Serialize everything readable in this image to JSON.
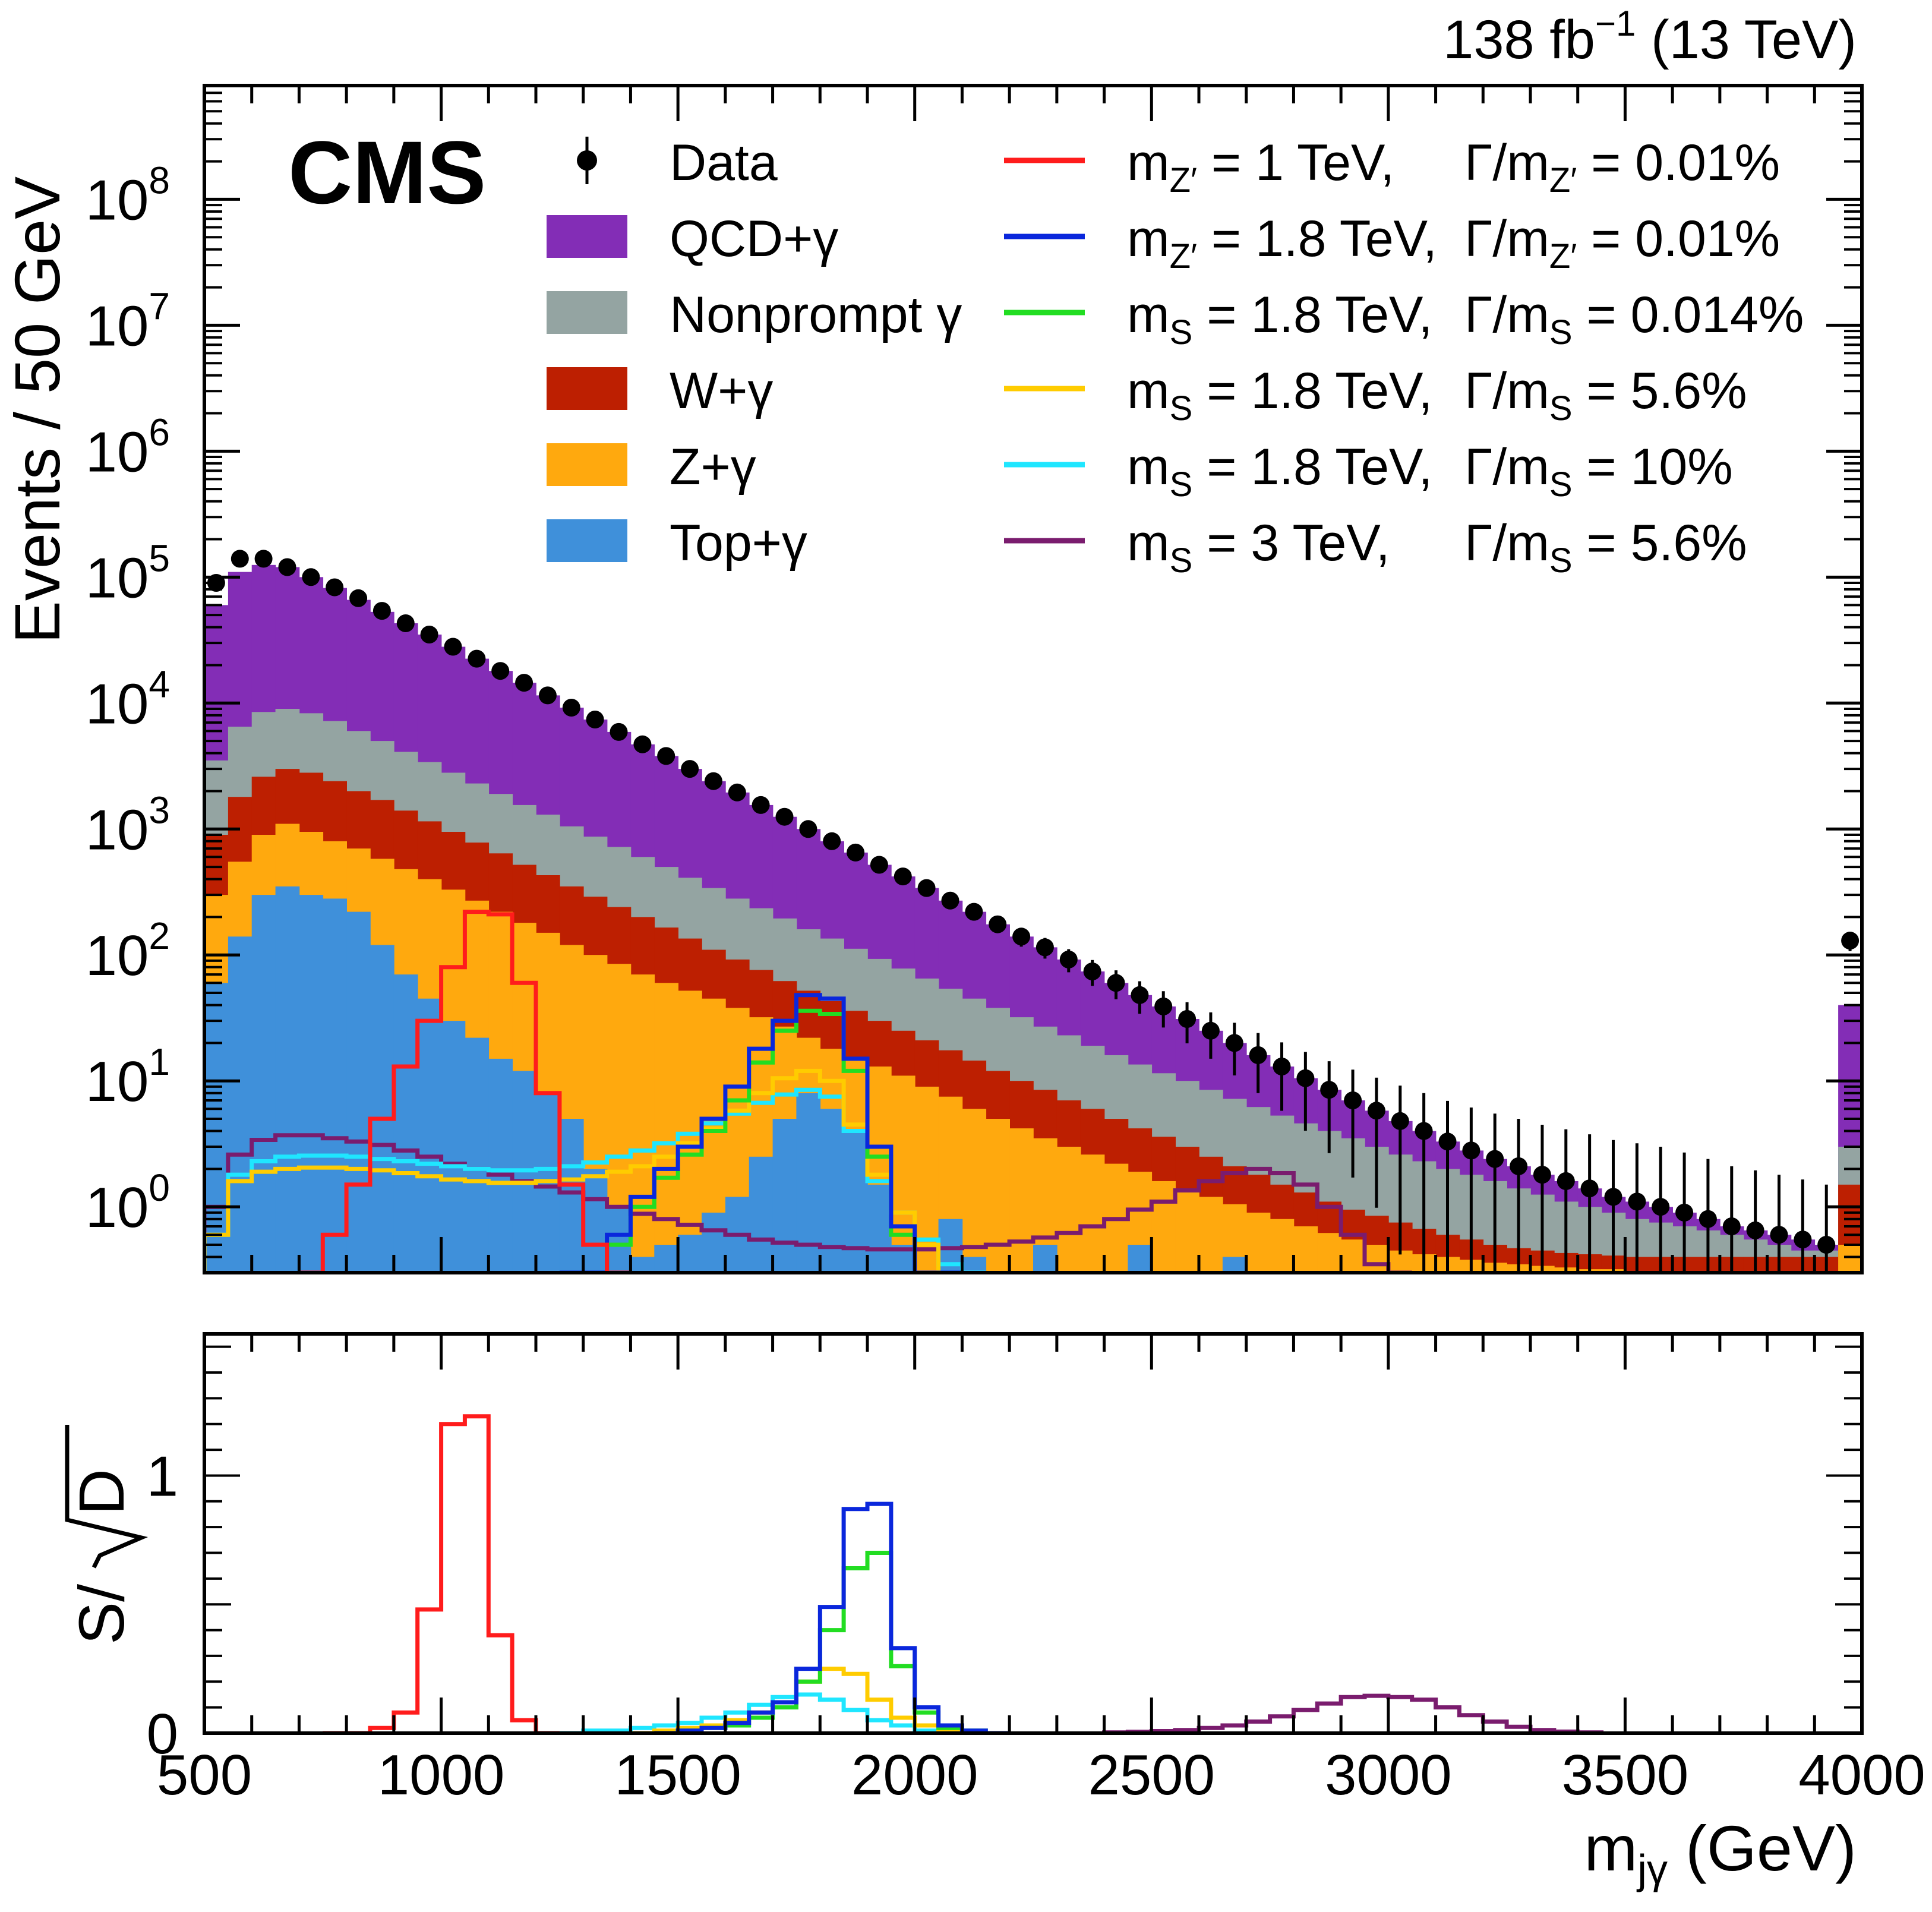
{
  "chart_data": {
    "type": "histogram-stack",
    "header": {
      "lumi_value": "138",
      "lumi_unit_prefix": "fb",
      "lumi_unit_exp": "−1",
      "energy": "(13 TeV)",
      "experiment": "CMS"
    },
    "colors": {
      "qcd": "#832db6",
      "nonprompt": "#94a4a2",
      "wgamma": "#bd1f01",
      "zgamma": "#ffa90e",
      "topgamma": "#3f90da",
      "sig_zp1": "#ff1c1c",
      "sig_zp18": "#0a27dc",
      "sig_s18_narrow": "#22dd22",
      "sig_s18_56": "#ffcc00",
      "sig_s18_10": "#1fe6ff",
      "sig_s3": "#7a1c6e",
      "data": "#000000"
    },
    "x_axis": {
      "label_main": "m",
      "label_sub": "jγ",
      "label_unit": " (GeV)",
      "range": [
        500,
        4000
      ],
      "ticks": [
        500,
        1000,
        1500,
        2000,
        2500,
        3000,
        3500,
        4000
      ],
      "tick_labels": [
        "500",
        "1000",
        "1500",
        "2000",
        "2500",
        "3000",
        "3500",
        "4000"
      ],
      "bin_width": 50
    },
    "top_panel": {
      "ylabel": "Events / 50 GeV",
      "yscale": "log",
      "ylim": [
        0.3,
        800000000.0
      ],
      "ticks": [
        {
          "base": "10",
          "exp": "0",
          "value": 1
        },
        {
          "base": "10",
          "exp": "1",
          "value": 10
        },
        {
          "base": "10",
          "exp": "2",
          "value": 100
        },
        {
          "base": "10",
          "exp": "3",
          "value": 1000
        },
        {
          "base": "10",
          "exp": "4",
          "value": 10000
        },
        {
          "base": "10",
          "exp": "5",
          "value": 100000
        },
        {
          "base": "10",
          "exp": "6",
          "value": 1000000
        },
        {
          "base": "10",
          "exp": "7",
          "value": 10000000
        },
        {
          "base": "10",
          "exp": "8",
          "value": 100000000
        }
      ]
    },
    "bottom_panel": {
      "ylabel_prefix": "S/",
      "ylabel_root": "D",
      "ylim": [
        0,
        1.55
      ],
      "ticks": [
        0,
        1
      ],
      "tick_labels": [
        "0",
        "1"
      ]
    },
    "legend": {
      "left": [
        {
          "key": "data",
          "label": "Data",
          "style": "marker"
        },
        {
          "key": "qcd",
          "label": "QCD+γ",
          "style": "box"
        },
        {
          "key": "nonprompt",
          "label": "Nonprompt γ",
          "style": "box"
        },
        {
          "key": "wgamma",
          "label": "W+γ",
          "style": "box"
        },
        {
          "key": "zgamma",
          "label": "Z+γ",
          "style": "box"
        },
        {
          "key": "topgamma",
          "label": "Top+γ",
          "style": "box"
        }
      ],
      "right": [
        {
          "key": "sig_zp1",
          "mass_sym": "m",
          "mass_sub": "Z′",
          "mass_val": " = 1 TeV,",
          "width_sym": "Γ/m",
          "width_sub": "Z′",
          "width_val": " = 0.01%"
        },
        {
          "key": "sig_zp18",
          "mass_sym": "m",
          "mass_sub": "Z′",
          "mass_val": " = 1.8 TeV,",
          "width_sym": "Γ/m",
          "width_sub": "Z′",
          "width_val": " = 0.01%"
        },
        {
          "key": "sig_s18_narrow",
          "mass_sym": "m",
          "mass_sub": "S",
          "mass_val": " = 1.8 TeV,",
          "width_sym": "Γ/m",
          "width_sub": "S",
          "width_val": " = 0.014%"
        },
        {
          "key": "sig_s18_56",
          "mass_sym": "m",
          "mass_sub": "S",
          "mass_val": " = 1.8 TeV,",
          "width_sym": "Γ/m",
          "width_sub": "S",
          "width_val": " = 5.6%"
        },
        {
          "key": "sig_s18_10",
          "mass_sym": "m",
          "mass_sub": "S",
          "mass_val": " = 1.8 TeV,",
          "width_sym": "Γ/m",
          "width_sub": "S",
          "width_val": " = 10%"
        },
        {
          "key": "sig_s3",
          "mass_sym": "m",
          "mass_sub": "S",
          "mass_val": " = 3 TeV,",
          "width_sym": "Γ/m",
          "width_sub": "S",
          "width_val": " = 5.6%"
        }
      ]
    },
    "background_stack": {
      "order": [
        "topgamma",
        "zgamma",
        "wgamma",
        "nonprompt",
        "qcd"
      ],
      "cumulative": {
        "topgamma": [
          60,
          140,
          300,
          350,
          300,
          280,
          220,
          120,
          70,
          45,
          30,
          22,
          15,
          12,
          8,
          5,
          2,
          1,
          0.4,
          0.5,
          0.6,
          0.9,
          1.2,
          2.5,
          5,
          8,
          6,
          4,
          1.5,
          0.5,
          0.3,
          0.8,
          0.4,
          0.3,
          0.3,
          0.5,
          0.3,
          0.3,
          0.3,
          0.5,
          0.3,
          0.3,
          0.3,
          0.4,
          0.3,
          0.3,
          0.3,
          0.3,
          0.3,
          0.3,
          0.3,
          0.3,
          0.3,
          0.3,
          0.3,
          0.3,
          0.3,
          0.3,
          0.3,
          0.3,
          0.3,
          0.3,
          0.3,
          0.3,
          0.3,
          0.3,
          0.3,
          0.3,
          0.3,
          0.3
        ],
        "zgamma": [
          300,
          550,
          900,
          1100,
          950,
          800,
          700,
          580,
          480,
          400,
          330,
          270,
          220,
          180,
          150,
          120,
          100,
          85,
          70,
          60,
          52,
          45,
          38,
          32,
          27,
          22,
          18,
          15,
          13,
          11,
          9,
          7.5,
          6,
          5,
          4.2,
          3.5,
          3,
          2.6,
          2.2,
          1.9,
          1.6,
          1.4,
          1.2,
          1.05,
          0.9,
          0.8,
          0.7,
          0.62,
          0.55,
          0.5,
          0.45,
          0.42,
          0.4,
          0.38,
          0.36,
          0.35,
          0.34,
          0.33,
          0.32,
          0.32,
          0.31,
          0.31,
          0.31,
          0.3,
          0.3,
          0.3,
          0.3,
          0.3,
          0.3,
          0.5
        ],
        "wgamma": [
          900,
          1800,
          2600,
          3000,
          2800,
          2400,
          2000,
          1700,
          1400,
          1150,
          950,
          780,
          640,
          520,
          430,
          350,
          290,
          240,
          200,
          165,
          135,
          110,
          92,
          76,
          62,
          52,
          43,
          36,
          30,
          25,
          21,
          17.5,
          14.5,
          12,
          10,
          8.5,
          7,
          6,
          5,
          4.2,
          3.6,
          3,
          2.5,
          2.1,
          1.8,
          1.5,
          1.3,
          1.1,
          0.95,
          0.85,
          0.75,
          0.67,
          0.6,
          0.55,
          0.5,
          0.47,
          0.45,
          0.43,
          0.42,
          0.41,
          0.4,
          0.4,
          0.4,
          0.4,
          0.4,
          0.4,
          0.4,
          0.4,
          0.4,
          1.5
        ],
        "nonprompt": [
          3500,
          6500,
          8500,
          9000,
          8300,
          7200,
          6000,
          5000,
          4100,
          3400,
          2800,
          2300,
          1900,
          1550,
          1300,
          1050,
          870,
          720,
          600,
          500,
          410,
          340,
          280,
          235,
          195,
          160,
          135,
          112,
          93,
          78,
          65,
          54,
          45,
          38,
          32,
          27,
          23,
          19,
          16,
          13.5,
          11.5,
          10,
          8.5,
          7.2,
          6.2,
          5.3,
          4.6,
          4,
          3.5,
          3,
          2.6,
          2.3,
          2,
          1.8,
          1.6,
          1.4,
          1.25,
          1.1,
          1,
          0.9,
          0.8,
          0.75,
          0.7,
          0.65,
          0.6,
          0.55,
          0.5,
          0.45,
          0.45,
          3
        ],
        "qcd": [
          60000,
          110000,
          125000,
          120000,
          100000,
          82000,
          66000,
          53000,
          43000,
          35000,
          28000,
          22500,
          18000,
          14500,
          11500,
          9200,
          7400,
          5900,
          4700,
          3800,
          3000,
          2400,
          1950,
          1550,
          1250,
          1000,
          800,
          650,
          520,
          420,
          340,
          270,
          220,
          175,
          140,
          115,
          92,
          74,
          60,
          48,
          39,
          31,
          25,
          20,
          16,
          13,
          10.5,
          8.5,
          7,
          5.8,
          4.8,
          4,
          3.3,
          2.8,
          2.4,
          2.1,
          1.8,
          1.6,
          1.4,
          1.2,
          1.1,
          1,
          0.9,
          0.8,
          0.7,
          0.65,
          0.6,
          0.55,
          0.5,
          40
        ]
      }
    },
    "data_points": {
      "x": [
        525,
        575,
        625,
        675,
        725,
        775,
        825,
        875,
        925,
        975,
        1025,
        1075,
        1125,
        1175,
        1225,
        1275,
        1325,
        1375,
        1425,
        1475,
        1525,
        1575,
        1625,
        1675,
        1725,
        1775,
        1825,
        1875,
        1925,
        1975,
        2025,
        2075,
        2125,
        2175,
        2225,
        2275,
        2325,
        2375,
        2425,
        2475,
        2525,
        2575,
        2625,
        2675,
        2725,
        2775,
        2825,
        2875,
        2925,
        2975,
        3025,
        3075,
        3125,
        3175,
        3225,
        3275,
        3325,
        3375,
        3425,
        3475,
        3525,
        3575,
        3625,
        3675,
        3725,
        3775,
        3825,
        3875,
        3925,
        3975
      ],
      "y": [
        90000,
        140000,
        140000,
        120000,
        100000,
        83000,
        68000,
        54000,
        43000,
        35000,
        28000,
        22500,
        18000,
        14500,
        11500,
        9200,
        7400,
        5900,
        4700,
        3800,
        3000,
        2400,
        1950,
        1550,
        1250,
        1000,
        800,
        650,
        520,
        420,
        340,
        270,
        220,
        175,
        140,
        115,
        92,
        74,
        60,
        48,
        39,
        31,
        25,
        20,
        16,
        13,
        10.5,
        8.5,
        7,
        5.8,
        4.8,
        4,
        3.3,
        2.8,
        2.4,
        2.1,
        1.8,
        1.6,
        1.4,
        1.2,
        1.1,
        1,
        0.9,
        0.8,
        0.7,
        0.65,
        0.6,
        0.55,
        0.5,
        130
      ]
    },
    "signals_top": {
      "sig_zp1": {
        "start": 700,
        "values": [
          0.2,
          0.6,
          1.5,
          5,
          13,
          30,
          80,
          220,
          210,
          60,
          8,
          1.5,
          0.5,
          0.2
        ]
      },
      "sig_zp18": {
        "start": 1250,
        "values": [
          0.2,
          0.3,
          0.6,
          1.2,
          2,
          3,
          5,
          9,
          18,
          30,
          48,
          45,
          15,
          3,
          0.7,
          0.3,
          0.2
        ]
      },
      "sig_s18_narrow": {
        "start": 1250,
        "values": [
          0.2,
          0.3,
          0.5,
          1,
          1.7,
          2.6,
          4,
          7,
          14,
          25,
          36,
          34,
          12,
          2.5,
          0.6,
          0.25,
          0.2
        ]
      },
      "sig_s18_56": {
        "start": 500,
        "values": [
          0.6,
          1.6,
          1.9,
          2,
          2.05,
          2.05,
          2,
          1.95,
          1.85,
          1.75,
          1.65,
          1.6,
          1.55,
          1.55,
          1.6,
          1.65,
          1.75,
          1.9,
          2.1,
          2.5,
          3.2,
          4.2,
          5.8,
          8,
          10.5,
          12,
          10,
          4.5,
          1.8,
          0.9,
          0.5,
          0.3
        ]
      },
      "sig_s18_10": {
        "start": 500,
        "values": [
          0.6,
          1.8,
          2.3,
          2.5,
          2.55,
          2.55,
          2.5,
          2.4,
          2.3,
          2.2,
          2.1,
          2,
          1.95,
          1.95,
          2,
          2.1,
          2.25,
          2.5,
          2.8,
          3.2,
          3.8,
          4.6,
          5.5,
          6.7,
          7.8,
          8.5,
          7.5,
          4,
          1.6,
          0.9,
          0.55,
          0.35,
          0.3
        ]
      },
      "sig_s3": {
        "start": 500,
        "values": [
          1,
          2.6,
          3.4,
          3.7,
          3.7,
          3.5,
          3.3,
          3.1,
          2.8,
          2.5,
          2.2,
          2,
          1.8,
          1.6,
          1.45,
          1.3,
          1.15,
          1,
          0.88,
          0.8,
          0.72,
          0.65,
          0.6,
          0.55,
          0.52,
          0.5,
          0.48,
          0.47,
          0.46,
          0.46,
          0.46,
          0.47,
          0.48,
          0.5,
          0.53,
          0.57,
          0.62,
          0.7,
          0.8,
          0.95,
          1.1,
          1.35,
          1.6,
          1.85,
          2,
          1.85,
          1.5,
          1,
          0.6,
          0.35,
          0.22
        ]
      }
    },
    "signals_ratio": {
      "sig_zp1": {
        "start": 750,
        "values": [
          0,
          0,
          0.02,
          0.08,
          0.48,
          1.2,
          1.23,
          0.38,
          0.05,
          0
        ]
      },
      "sig_zp18": {
        "start": 1450,
        "values": [
          0,
          0.01,
          0.02,
          0.04,
          0.08,
          0.12,
          0.25,
          0.49,
          0.87,
          0.89,
          0.33,
          0.1,
          0.03,
          0.01,
          0
        ]
      },
      "sig_s18_narrow": {
        "start": 1450,
        "values": [
          0,
          0.01,
          0.02,
          0.03,
          0.06,
          0.1,
          0.2,
          0.4,
          0.64,
          0.7,
          0.26,
          0.08,
          0.02,
          0.01,
          0
        ]
      },
      "sig_s18_56": {
        "start": 1400,
        "values": [
          0,
          0.01,
          0.02,
          0.03,
          0.05,
          0.08,
          0.12,
          0.2,
          0.25,
          0.23,
          0.13,
          0.06,
          0.03,
          0.01,
          0
        ]
      },
      "sig_s18_10": {
        "start": 1250,
        "values": [
          0,
          0.01,
          0.01,
          0.02,
          0.03,
          0.04,
          0.06,
          0.08,
          0.11,
          0.14,
          0.15,
          0.13,
          0.09,
          0.05,
          0.03,
          0.01,
          0.01,
          0
        ]
      },
      "sig_s3": {
        "start": 2400,
        "values": [
          0.003,
          0.005,
          0.008,
          0.012,
          0.02,
          0.03,
          0.045,
          0.065,
          0.09,
          0.115,
          0.14,
          0.145,
          0.14,
          0.13,
          0.1,
          0.07,
          0.045,
          0.025,
          0.012,
          0.006,
          0.003
        ]
      }
    }
  }
}
